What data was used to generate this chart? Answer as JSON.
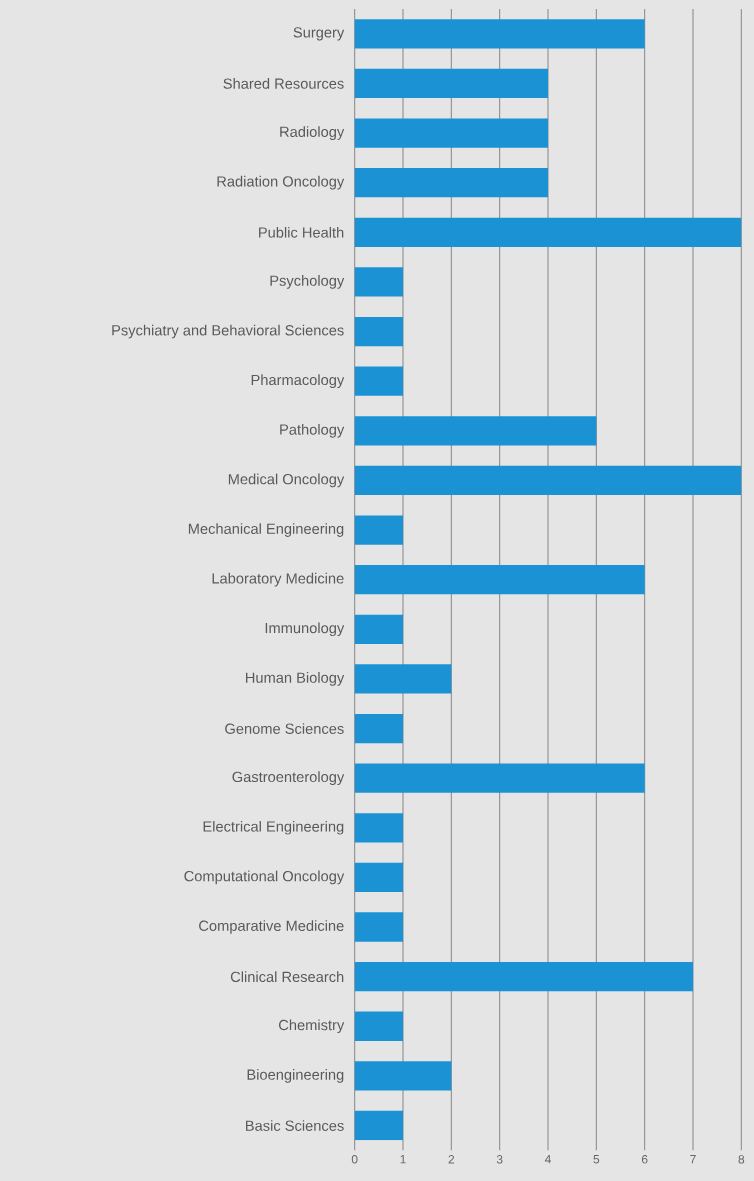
{
  "chart_data": {
    "type": "bar",
    "orientation": "horizontal",
    "categories": [
      "Surgery",
      "Shared Resources",
      "Radiology",
      "Radiation Oncology",
      "Public Health",
      "Psychology",
      "Psychiatry and Behavioral Sciences",
      "Pharmacology",
      "Pathology",
      "Medical Oncology",
      "Mechanical Engineering",
      "Laboratory Medicine",
      "Immunology",
      "Human Biology",
      "Genome Sciences",
      "Gastroenterology",
      "Electrical Engineering",
      "Computational Oncology",
      "Comparative Medicine",
      "Clinical Research",
      "Chemistry",
      "Bioengineering",
      "Basic Sciences"
    ],
    "values": [
      6,
      4,
      4,
      4,
      8,
      1,
      1,
      1,
      5,
      8,
      1,
      6,
      1,
      2,
      1,
      6,
      1,
      1,
      1,
      7,
      1,
      2,
      1
    ],
    "color": "#1a92d4",
    "xlim": [
      0,
      8
    ],
    "xticks": [
      0,
      1,
      2,
      3,
      4,
      5,
      6,
      7,
      8
    ],
    "grid": "x"
  }
}
